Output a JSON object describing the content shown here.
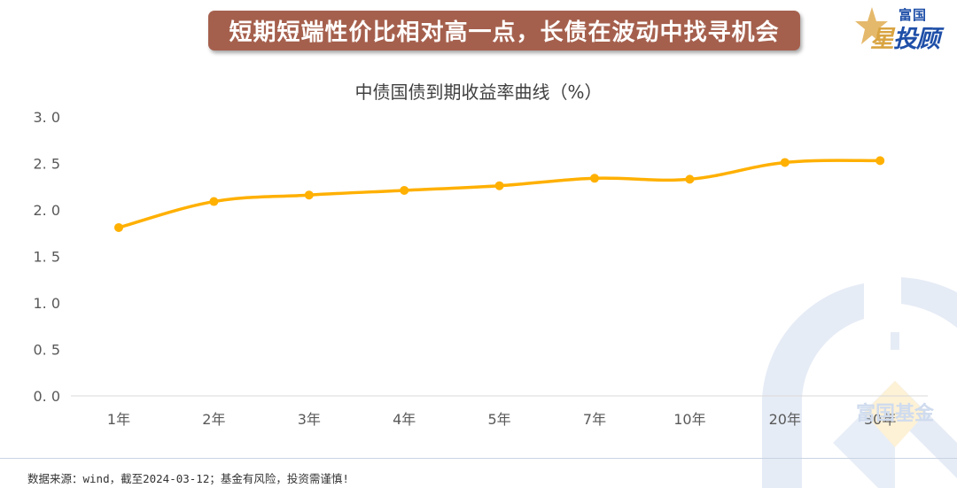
{
  "header": {
    "banner_title": "短期短端性价比相对高一点，长债在波动中找寻机会",
    "logo_small": "富国",
    "logo_big_first": "星",
    "logo_big_rest": "投顾",
    "banner_color": "#a5604d"
  },
  "watermark": {
    "text": "富国基金"
  },
  "footer": {
    "source_note": "数据来源：wind，截至2024-03-12；基金有风险，投资需谨慎!"
  },
  "chart_data": {
    "type": "line",
    "title": "中债国债到期收益率曲线（%）",
    "xlabel": "",
    "ylabel": "",
    "categories": [
      "1年",
      "2年",
      "3年",
      "4年",
      "5年",
      "7年",
      "10年",
      "20年",
      "30年"
    ],
    "series": [
      {
        "name": "中债国债到期收益率",
        "color": "#ffb000",
        "values": [
          1.81,
          2.09,
          2.16,
          2.21,
          2.26,
          2.34,
          2.33,
          2.51,
          2.53
        ]
      }
    ],
    "ylim": [
      0,
      3.0
    ],
    "yticks": [
      "0.0",
      "0.5",
      "1.0",
      "1.5",
      "2.0",
      "2.5",
      "3.0"
    ],
    "grid": false,
    "smooth": true,
    "legend": "none"
  }
}
